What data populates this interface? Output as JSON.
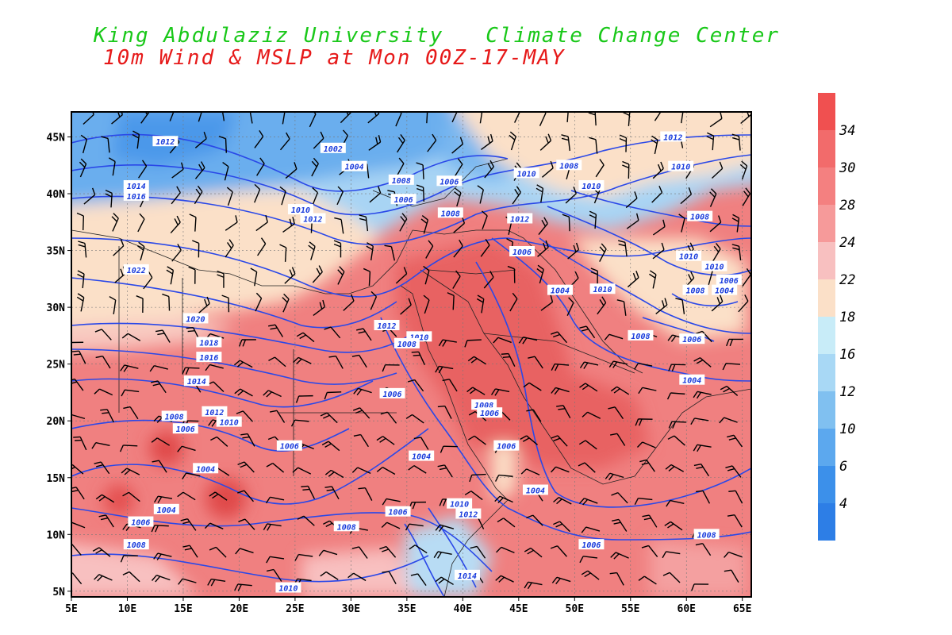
{
  "header": {
    "line1": "King Abdulaziz University   Climate Change Center",
    "line2": "10m Wind & MSLP at Mon 00Z-17-MAY"
  },
  "map": {
    "x_ticks": [
      "5E",
      "10E",
      "15E",
      "20E",
      "25E",
      "30E",
      "35E",
      "40E",
      "45E",
      "50E",
      "55E",
      "60E",
      "65E"
    ],
    "y_ticks": [
      "45N",
      "40N",
      "35N",
      "30N",
      "25N",
      "20N",
      "15N",
      "10N",
      "5N"
    ],
    "isobar_labels": [
      {
        "t": "1012",
        "lon": 13.4,
        "lat": 44.6
      },
      {
        "t": "1002",
        "lon": 28.4,
        "lat": 44.0
      },
      {
        "t": "1004",
        "lon": 30.3,
        "lat": 42.4
      },
      {
        "t": "1008",
        "lon": 34.5,
        "lat": 41.2
      },
      {
        "t": "1006",
        "lon": 38.8,
        "lat": 41.1
      },
      {
        "t": "1008",
        "lon": 49.5,
        "lat": 42.5
      },
      {
        "t": "1010",
        "lon": 45.7,
        "lat": 41.8
      },
      {
        "t": "1010",
        "lon": 51.5,
        "lat": 40.7
      },
      {
        "t": "1012",
        "lon": 58.8,
        "lat": 45.0
      },
      {
        "t": "1010",
        "lon": 59.5,
        "lat": 42.4
      },
      {
        "t": "1014",
        "lon": 10.8,
        "lat": 40.7
      },
      {
        "t": "1016",
        "lon": 10.8,
        "lat": 39.8
      },
      {
        "t": "1006",
        "lon": 34.7,
        "lat": 39.5
      },
      {
        "t": "1008",
        "lon": 38.9,
        "lat": 38.3
      },
      {
        "t": "1012",
        "lon": 45.1,
        "lat": 37.8
      },
      {
        "t": "1010",
        "lon": 25.5,
        "lat": 38.6
      },
      {
        "t": "1012",
        "lon": 26.6,
        "lat": 37.8
      },
      {
        "t": "1008",
        "lon": 61.2,
        "lat": 38.0
      },
      {
        "t": "1006",
        "lon": 45.3,
        "lat": 34.9
      },
      {
        "t": "1010",
        "lon": 60.2,
        "lat": 34.5
      },
      {
        "t": "1010",
        "lon": 62.5,
        "lat": 33.6
      },
      {
        "t": "1022",
        "lon": 10.8,
        "lat": 33.3
      },
      {
        "t": "1004",
        "lon": 48.7,
        "lat": 31.5
      },
      {
        "t": "1010",
        "lon": 52.5,
        "lat": 31.6
      },
      {
        "t": "1006",
        "lon": 63.8,
        "lat": 32.4
      },
      {
        "t": "1008",
        "lon": 60.8,
        "lat": 31.5
      },
      {
        "t": "1004",
        "lon": 63.4,
        "lat": 31.5
      },
      {
        "t": "1020",
        "lon": 16.1,
        "lat": 29.0
      },
      {
        "t": "1012",
        "lon": 33.2,
        "lat": 28.4
      },
      {
        "t": "1010",
        "lon": 36.1,
        "lat": 27.4
      },
      {
        "t": "1008",
        "lon": 35.0,
        "lat": 26.8
      },
      {
        "t": "1008",
        "lon": 55.9,
        "lat": 27.5
      },
      {
        "t": "1006",
        "lon": 60.5,
        "lat": 27.2
      },
      {
        "t": "1018",
        "lon": 17.3,
        "lat": 26.9
      },
      {
        "t": "1016",
        "lon": 17.3,
        "lat": 25.6
      },
      {
        "t": "1014",
        "lon": 16.2,
        "lat": 23.5
      },
      {
        "t": "1004",
        "lon": 60.5,
        "lat": 23.6
      },
      {
        "t": "1006",
        "lon": 33.7,
        "lat": 22.4
      },
      {
        "t": "1008",
        "lon": 41.9,
        "lat": 21.4
      },
      {
        "t": "1006",
        "lon": 42.4,
        "lat": 20.7
      },
      {
        "t": "1012",
        "lon": 17.8,
        "lat": 20.8
      },
      {
        "t": "1008",
        "lon": 14.2,
        "lat": 20.4
      },
      {
        "t": "1010",
        "lon": 19.1,
        "lat": 19.9
      },
      {
        "t": "1006",
        "lon": 15.2,
        "lat": 19.3
      },
      {
        "t": "1006",
        "lon": 24.5,
        "lat": 17.8
      },
      {
        "t": "1006",
        "lon": 43.9,
        "lat": 17.8
      },
      {
        "t": "1004",
        "lon": 36.3,
        "lat": 16.9
      },
      {
        "t": "1004",
        "lon": 17.0,
        "lat": 15.8
      },
      {
        "t": "1004",
        "lon": 46.5,
        "lat": 13.9
      },
      {
        "t": "1004",
        "lon": 13.5,
        "lat": 12.2
      },
      {
        "t": "1010",
        "lon": 39.7,
        "lat": 12.7
      },
      {
        "t": "1012",
        "lon": 40.5,
        "lat": 11.8
      },
      {
        "t": "1006",
        "lon": 34.2,
        "lat": 12.0
      },
      {
        "t": "1006",
        "lon": 11.2,
        "lat": 11.1
      },
      {
        "t": "1008",
        "lon": 29.6,
        "lat": 10.7
      },
      {
        "t": "1008",
        "lon": 10.8,
        "lat": 9.1
      },
      {
        "t": "1006",
        "lon": 51.5,
        "lat": 9.1
      },
      {
        "t": "1008",
        "lon": 61.8,
        "lat": 10.0
      },
      {
        "t": "1014",
        "lon": 40.4,
        "lat": 6.4
      },
      {
        "t": "1010",
        "lon": 24.4,
        "lat": 5.3
      }
    ]
  },
  "colorbar": {
    "labels": [
      "34",
      "30",
      "28",
      "24",
      "22",
      "18",
      "16",
      "12",
      "10",
      "6",
      "4"
    ],
    "colors": [
      "#f05050",
      "#f26b6b",
      "#f48080",
      "#f69a9a",
      "#f8c0c0",
      "#fbe0c8",
      "#c8ecf8",
      "#a8d8f5",
      "#80c0f0",
      "#5ca8ee",
      "#3c90ea",
      "#2d7ee6"
    ]
  },
  "colors": {
    "isobar": "#2a48e8",
    "land_warm": "#f08080",
    "land_hot": "#e85858",
    "cool": "#b8dcf4",
    "cold": "#5ca0ee",
    "neutral": "#fbe0c8"
  }
}
